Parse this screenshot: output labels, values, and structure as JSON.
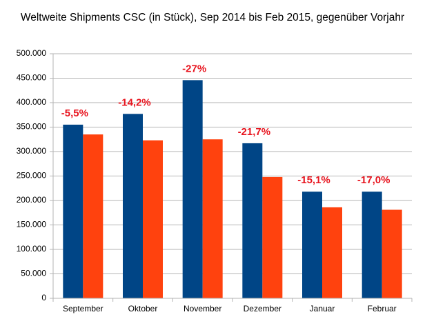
{
  "chart_data": {
    "type": "bar",
    "title": "Weltweite Shipments CSC (in Stück), Sep 2014 bis Feb 2015, gegenüber Vorjahr",
    "categories": [
      "September",
      "Oktober",
      "November",
      "Dezember",
      "Januar",
      "Februar"
    ],
    "series": [
      {
        "color": "#004586",
        "values": [
          355000,
          377000,
          446000,
          317000,
          218000,
          218000
        ]
      },
      {
        "color": "#ff420e",
        "values": [
          335000,
          323000,
          325000,
          248000,
          186000,
          181000
        ]
      }
    ],
    "annotations": [
      "-5,5%",
      "-14,2%",
      "-27%",
      "-21,7%",
      "-15,1%",
      "-17,0%"
    ],
    "annotation_color": "#e8141e",
    "ylim": [
      0,
      500000
    ],
    "yticks": [
      0,
      {
        "value": 50000,
        "label": "50.000"
      },
      {
        "value": 100000,
        "label": "100.000"
      },
      {
        "value": 150000,
        "label": "150.000"
      },
      {
        "value": 200000,
        "label": "200.000"
      },
      {
        "value": 250000,
        "label": "250.000"
      },
      {
        "value": 300000,
        "label": "300.000"
      },
      {
        "value": 350000,
        "label": "350.000"
      },
      {
        "value": 400000,
        "label": "400.000"
      },
      {
        "value": 450000,
        "label": "450.000"
      },
      {
        "value": 500000,
        "label": "500.000"
      }
    ],
    "grid": true
  }
}
